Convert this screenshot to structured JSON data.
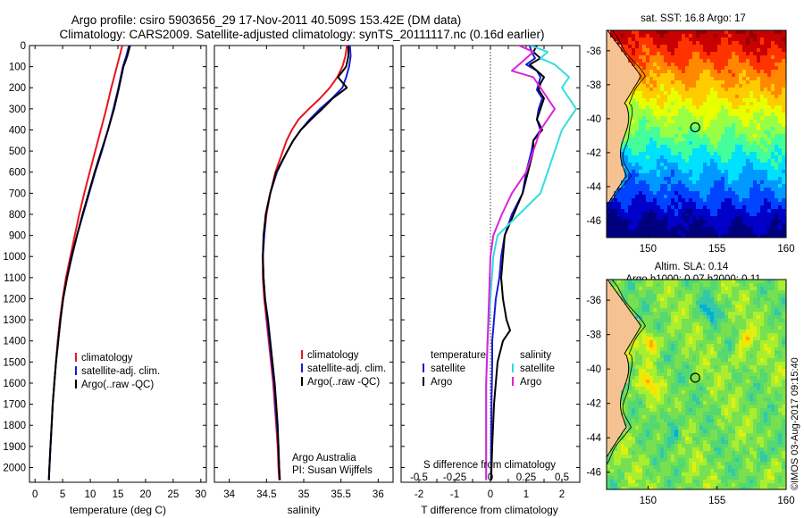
{
  "header": {
    "line1": "Argo profile: csiro 5903656_29 17-Nov-2011 40.509S 153.42E (DM data)",
    "line2": "Climatology: CARS2009. Satellite-adjusted climatology: synTS_20111117.nc (0.16d earlier)"
  },
  "credit": {
    "line1": "Argo Australia",
    "line2": "PI: Susan Wijffels"
  },
  "stamp": "©IMOS 03-Aug-2017 09:15:40",
  "colors": {
    "climatology": "#e8141e",
    "satellite": "#1a1ad8",
    "argo": "#000000",
    "cyan": "#33dddd",
    "magenta": "#dd22dd"
  },
  "chart_data": [
    {
      "type": "line",
      "id": "temperature",
      "xlabel": "temperature (deg C)",
      "ylabel": "",
      "xlim": [
        -1,
        31
      ],
      "ylim": [
        2070,
        0
      ],
      "xticks": [
        0,
        5,
        10,
        15,
        20,
        25,
        30
      ],
      "yticks": [
        0,
        100,
        200,
        300,
        400,
        500,
        600,
        700,
        800,
        900,
        1000,
        1100,
        1200,
        1300,
        1400,
        1500,
        1600,
        1700,
        1800,
        1900,
        2000
      ],
      "legend": [
        "climatology",
        "satellite-adj. clim.",
        "Argo(..raw -QC)"
      ],
      "series": [
        {
          "name": "climatology",
          "color": "#e8141e",
          "depth": [
            0,
            50,
            100,
            200,
            300,
            400,
            500,
            600,
            700,
            800,
            900,
            1000,
            1100,
            1200,
            1300,
            1400,
            1500,
            1600,
            1700,
            1800,
            1900,
            2000,
            2060
          ],
          "values": [
            15.8,
            15.3,
            14.8,
            13.8,
            12.9,
            11.9,
            10.9,
            9.9,
            8.9,
            8.0,
            7.2,
            6.4,
            5.6,
            5.0,
            4.5,
            4.1,
            3.8,
            3.5,
            3.2,
            3.0,
            2.8,
            2.6,
            2.5
          ]
        },
        {
          "name": "satellite-adj. clim.",
          "color": "#1a1ad8",
          "depth": [
            0,
            50,
            100,
            200,
            300,
            400,
            500,
            600,
            700,
            800,
            900,
            1000,
            1100,
            1200,
            1300,
            1400,
            1500,
            1600,
            1700,
            1800,
            1900,
            2000,
            2060
          ],
          "values": [
            17.0,
            16.5,
            15.9,
            15.1,
            14.2,
            13.2,
            12.1,
            10.9,
            9.8,
            8.7,
            7.6,
            6.7,
            5.8,
            5.1,
            4.6,
            4.2,
            3.8,
            3.5,
            3.2,
            3.0,
            2.8,
            2.6,
            2.5
          ]
        },
        {
          "name": "Argo(..raw -QC)",
          "color": "#000000",
          "depth": [
            0,
            50,
            100,
            200,
            300,
            400,
            500,
            600,
            700,
            800,
            900,
            1000,
            1100,
            1200,
            1300,
            1400,
            1500,
            1600,
            1700,
            1800,
            1900,
            2000,
            2060
          ],
          "values": [
            17.2,
            16.7,
            16.0,
            15.2,
            14.3,
            13.2,
            12.0,
            10.8,
            9.7,
            8.6,
            7.6,
            6.6,
            5.8,
            5.1,
            4.6,
            4.2,
            3.8,
            3.5,
            3.2,
            3.0,
            2.8,
            2.6,
            2.5
          ]
        }
      ]
    },
    {
      "type": "line",
      "id": "salinity",
      "xlabel": "salinity",
      "xlim": [
        33.8,
        36.2
      ],
      "ylim": [
        2070,
        0
      ],
      "xticks": [
        34,
        34.5,
        35,
        35.5,
        36
      ],
      "yticks": [],
      "legend": [
        "climatology",
        "satellite-adj. clim.",
        "Argo(..raw -QC)"
      ],
      "series": [
        {
          "name": "climatology",
          "color": "#e8141e",
          "depth": [
            0,
            50,
            100,
            150,
            200,
            250,
            300,
            350,
            400,
            450,
            500,
            600,
            700,
            800,
            900,
            1000,
            1100,
            1200,
            1300,
            1400,
            1500,
            1600,
            1700,
            1800,
            1900,
            2000,
            2060
          ],
          "values": [
            35.58,
            35.56,
            35.52,
            35.45,
            35.35,
            35.22,
            35.07,
            34.93,
            34.84,
            34.77,
            34.72,
            34.62,
            34.55,
            34.5,
            34.47,
            34.45,
            34.45,
            34.47,
            34.5,
            34.53,
            34.56,
            34.59,
            34.61,
            34.63,
            34.65,
            34.66,
            34.67
          ]
        },
        {
          "name": "satellite-adj. clim.",
          "color": "#1a1ad8",
          "depth": [
            0,
            50,
            100,
            150,
            200,
            250,
            300,
            350,
            400,
            450,
            500,
            600,
            700,
            800,
            900,
            1000,
            1100,
            1200,
            1300,
            1400,
            1500,
            1600,
            1700,
            1800,
            1900,
            2000,
            2060
          ],
          "values": [
            35.62,
            35.63,
            35.61,
            35.57,
            35.52,
            35.38,
            35.22,
            35.08,
            34.96,
            34.86,
            34.78,
            34.64,
            34.55,
            34.49,
            34.47,
            34.45,
            34.46,
            34.48,
            34.51,
            34.54,
            34.57,
            34.6,
            34.62,
            34.64,
            34.66,
            34.67,
            34.68
          ]
        },
        {
          "name": "Argo(..raw -QC)",
          "color": "#000000",
          "depth": [
            0,
            50,
            100,
            150,
            200,
            250,
            300,
            350,
            400,
            450,
            500,
            600,
            700,
            800,
            900,
            1000,
            1100,
            1200,
            1300,
            1400,
            1500,
            1600,
            1700,
            1800,
            1900,
            2000,
            2060
          ],
          "values": [
            35.6,
            35.6,
            35.57,
            35.46,
            35.58,
            35.39,
            35.25,
            35.1,
            34.96,
            34.86,
            34.78,
            34.63,
            34.55,
            34.49,
            34.46,
            34.45,
            34.46,
            34.48,
            34.52,
            34.55,
            34.58,
            34.61,
            34.63,
            34.65,
            34.66,
            34.67,
            34.68
          ]
        }
      ]
    },
    {
      "type": "line",
      "id": "difference",
      "xlabel": "T difference from climatology",
      "xlabel_top": "S difference from climatology",
      "xlim": [
        -2.5,
        2.5
      ],
      "ylim": [
        2070,
        0
      ],
      "xticks": [
        -2,
        -1.5,
        -1,
        -0.5,
        0,
        0.5,
        1,
        1.5,
        2
      ],
      "xticklabels": [
        "-2",
        "",
        "-1",
        "",
        "0",
        "",
        "1",
        "",
        "2"
      ],
      "s_xticklabels": [
        "-0.5",
        "-0.25",
        "0",
        "0.25",
        "0.5"
      ],
      "legend_left_title": "temperature",
      "legend_right_title": "salinity",
      "legend_left": [
        "satellite",
        "Argo"
      ],
      "legend_right": [
        "satellite",
        "Argo"
      ],
      "series": [
        {
          "name": "temperature satellite",
          "color": "#1a1ad8",
          "depth": [
            0,
            30,
            60,
            90,
            120,
            150,
            180,
            210,
            250,
            300,
            350,
            400,
            450,
            500,
            600,
            700,
            800,
            900,
            1000,
            1100,
            1200,
            1300,
            1400,
            1500,
            1700,
            1900,
            2060
          ],
          "values": [
            1.1,
            1.15,
            1.25,
            1.0,
            1.3,
            1.4,
            1.35,
            1.3,
            1.45,
            1.35,
            1.3,
            1.4,
            1.2,
            1.15,
            1.0,
            0.9,
            0.6,
            0.4,
            0.3,
            0.25,
            0.15,
            0.1,
            0.05,
            0.05,
            0.03,
            0.02,
            0.02
          ]
        },
        {
          "name": "temperature Argo",
          "color": "#000000",
          "depth": [
            0,
            30,
            60,
            90,
            120,
            150,
            180,
            210,
            250,
            300,
            350,
            400,
            450,
            500,
            600,
            700,
            800,
            900,
            1000,
            1100,
            1200,
            1300,
            1350,
            1400,
            1500,
            1700,
            1900,
            2060
          ],
          "values": [
            1.3,
            1.2,
            1.4,
            1.1,
            1.3,
            1.5,
            1.4,
            1.35,
            1.5,
            1.4,
            1.3,
            1.45,
            1.2,
            1.2,
            1.05,
            0.9,
            0.65,
            0.4,
            0.35,
            0.3,
            0.35,
            0.45,
            0.55,
            0.35,
            0.2,
            0.1,
            0.05,
            0.02
          ]
        },
        {
          "name": "salinity satellite",
          "color": "#33dddd",
          "depth": [
            0,
            30,
            60,
            90,
            120,
            150,
            200,
            250,
            300,
            350,
            400,
            500,
            600,
            700,
            800,
            900,
            1000,
            1200,
            1400,
            1600,
            1800,
            2000,
            2060
          ],
          "values": [
            0.28,
            0.4,
            0.35,
            0.45,
            0.5,
            0.55,
            0.5,
            0.55,
            0.6,
            0.55,
            0.5,
            0.45,
            0.4,
            0.35,
            0.2,
            0.05,
            0.02,
            0.0,
            -0.02,
            -0.03,
            -0.03,
            -0.03,
            -0.03
          ]
        },
        {
          "name": "salinity Argo",
          "color": "#dd22dd",
          "depth": [
            0,
            30,
            60,
            90,
            120,
            150,
            200,
            250,
            300,
            350,
            400,
            500,
            600,
            700,
            800,
            900,
            1000,
            1200,
            1400,
            1600,
            1800,
            2000,
            2060
          ],
          "values": [
            0.2,
            0.3,
            0.25,
            0.2,
            0.15,
            0.3,
            0.35,
            0.4,
            0.45,
            0.4,
            0.35,
            0.3,
            0.25,
            0.15,
            0.08,
            0.02,
            0.0,
            -0.01,
            -0.02,
            -0.03,
            -0.03,
            -0.03,
            -0.03
          ]
        }
      ]
    },
    {
      "type": "heatmap",
      "id": "sst_map",
      "title": "sat. SST: 16.8 Argo: 17",
      "xlim": [
        147,
        160
      ],
      "ylim": [
        -47,
        -34.8
      ],
      "xticks": [
        150,
        155,
        160
      ],
      "yticks": [
        -36,
        -38,
        -40,
        -42,
        -44,
        -46
      ],
      "marker": {
        "lon": 153.42,
        "lat": -40.509
      }
    },
    {
      "type": "heatmap",
      "id": "sla_map",
      "title": "Altim. SLA: 0.14",
      "subtitle": "Argo h1000: 0.07 h2000: 0.11",
      "xlim": [
        147,
        160
      ],
      "ylim": [
        -47,
        -34.8
      ],
      "xticks": [
        150,
        155,
        160
      ],
      "yticks": [
        -36,
        -38,
        -40,
        -42,
        -44,
        -46
      ],
      "marker": {
        "lon": 153.42,
        "lat": -40.509
      }
    }
  ]
}
